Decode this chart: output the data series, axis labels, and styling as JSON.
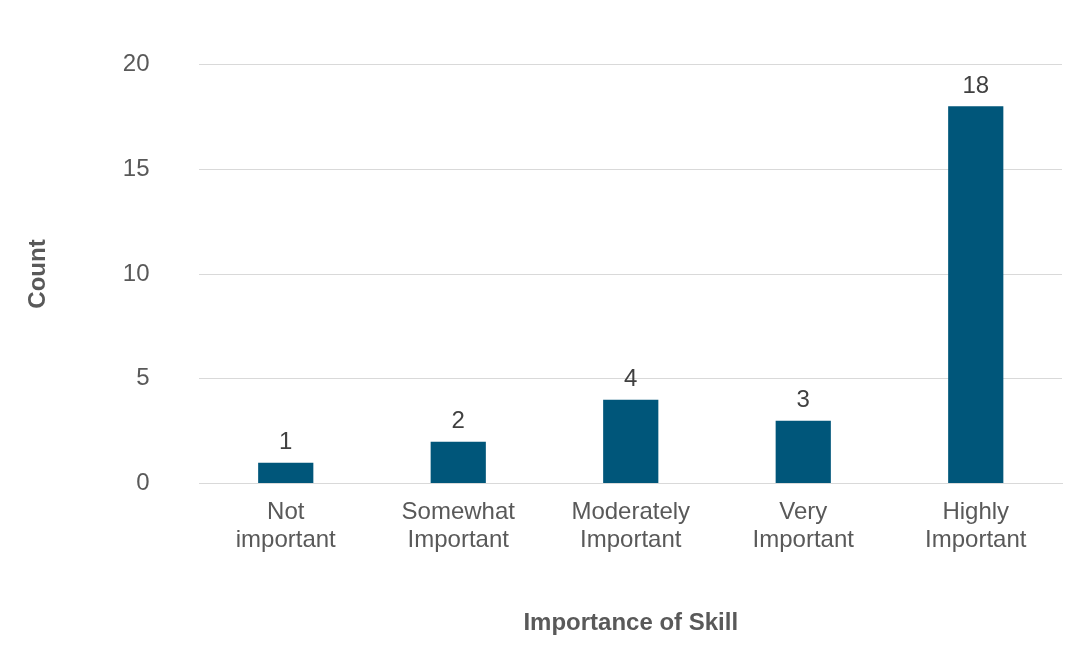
{
  "chart_data": {
    "type": "bar",
    "xlabel": "Importance of Skill",
    "ylabel": "Count",
    "categories": [
      "Not important",
      "Somewhat Important",
      "Moderately Important",
      "Very Important",
      "Highly Important"
    ],
    "values": [
      1,
      2,
      4,
      3,
      18
    ],
    "color": "#00567a",
    "ylim": [
      0,
      20
    ],
    "yticks": [
      0,
      5,
      10,
      15,
      20
    ],
    "grid": "y",
    "data_labels": true
  }
}
